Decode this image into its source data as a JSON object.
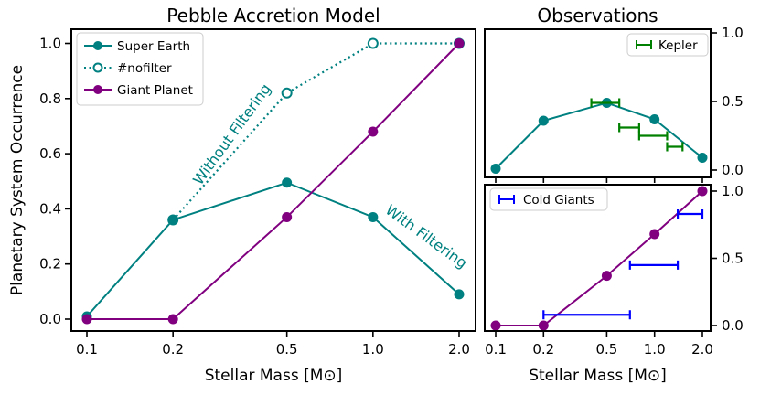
{
  "chart_data": [
    {
      "type": "line",
      "title": "Pebble Accretion Model",
      "xlabel": "Stellar Mass [M⊙]",
      "ylabel": "Planetary System Occurrence",
      "x_scale": "log",
      "x_ticks": [
        0.1,
        0.2,
        0.5,
        1.0,
        2.0
      ],
      "x_tick_labels": [
        "0.1",
        "0.2",
        "0.5",
        "1.0",
        "2.0"
      ],
      "y_ticks": [
        0.0,
        0.2,
        0.4,
        0.6,
        0.8,
        1.0
      ],
      "y_tick_labels": [
        "0.0",
        "0.2",
        "0.4",
        "0.6",
        "0.8",
        "1.0"
      ],
      "ylim": [
        -0.05,
        1.05
      ],
      "legend_position": "top-left",
      "series": [
        {
          "name": "Super Earth",
          "color": "#008080",
          "style": "solid",
          "marker": "filled-circle",
          "x": [
            0.1,
            0.2,
            0.5,
            1.0,
            2.0
          ],
          "y": [
            0.01,
            0.36,
            0.495,
            0.37,
            0.09
          ]
        },
        {
          "name": "#nofilter",
          "color": "#008080",
          "style": "dotted",
          "marker": "open-circle",
          "x": [
            0.2,
            0.5,
            1.0,
            2.0
          ],
          "y": [
            0.36,
            0.82,
            1.0,
            1.0
          ]
        },
        {
          "name": "Giant Planet",
          "color": "#800080",
          "style": "solid",
          "marker": "filled-circle",
          "x": [
            0.1,
            0.2,
            0.5,
            1.0,
            2.0
          ],
          "y": [
            0.0,
            0.0,
            0.37,
            0.68,
            1.0
          ]
        }
      ],
      "annotations": [
        {
          "text": "Without Filtering",
          "color": "#008080"
        },
        {
          "text": "With Filtering",
          "color": "#008080"
        }
      ]
    },
    {
      "type": "line",
      "title": "Observations",
      "x_scale": "log",
      "y_ticks": [
        0.0,
        0.5,
        1.0
      ],
      "y_tick_labels": [
        "0.0",
        "0.5",
        "1.0"
      ],
      "ylim": [
        -0.05,
        1.05
      ],
      "legend_position": "top-right",
      "series": [
        {
          "name": "Super Earth",
          "color": "#008080",
          "style": "solid",
          "marker": "filled-circle",
          "x": [
            0.1,
            0.2,
            0.5,
            1.0,
            2.0
          ],
          "y": [
            0.01,
            0.36,
            0.49,
            0.37,
            0.09
          ]
        },
        {
          "name": "Kepler",
          "color": "#008000",
          "style": "errorbar-x",
          "points": [
            {
              "y": 0.49,
              "xmin": 0.4,
              "xmax": 0.6
            },
            {
              "y": 0.31,
              "xmin": 0.6,
              "xmax": 0.8
            },
            {
              "y": 0.25,
              "xmin": 0.8,
              "xmax": 1.2
            },
            {
              "y": 0.17,
              "xmin": 1.2,
              "xmax": 1.5
            }
          ]
        }
      ]
    },
    {
      "type": "line",
      "xlabel": "Stellar Mass [M⊙]",
      "x_scale": "log",
      "x_ticks": [
        0.1,
        0.2,
        0.5,
        1.0,
        2.0
      ],
      "x_tick_labels": [
        "0.1",
        "0.2",
        "0.5",
        "1.0",
        "2.0"
      ],
      "y_ticks": [
        0.0,
        0.5,
        1.0
      ],
      "y_tick_labels": [
        "0.0",
        "0.5",
        "1.0"
      ],
      "ylim": [
        -0.05,
        1.05
      ],
      "legend_position": "top-left",
      "series": [
        {
          "name": "Giant Planet",
          "color": "#800080",
          "style": "solid",
          "marker": "filled-circle",
          "x": [
            0.1,
            0.2,
            0.5,
            1.0,
            2.0
          ],
          "y": [
            0.0,
            0.0,
            0.37,
            0.68,
            1.0
          ]
        },
        {
          "name": "Cold Giants",
          "color": "#0000ff",
          "style": "errorbar-x",
          "points": [
            {
              "y": 0.08,
              "xmin": 0.2,
              "xmax": 0.7
            },
            {
              "y": 0.45,
              "xmin": 0.7,
              "xmax": 1.4
            },
            {
              "y": 0.83,
              "xmin": 1.4,
              "xmax": 2.0
            }
          ]
        }
      ]
    }
  ]
}
